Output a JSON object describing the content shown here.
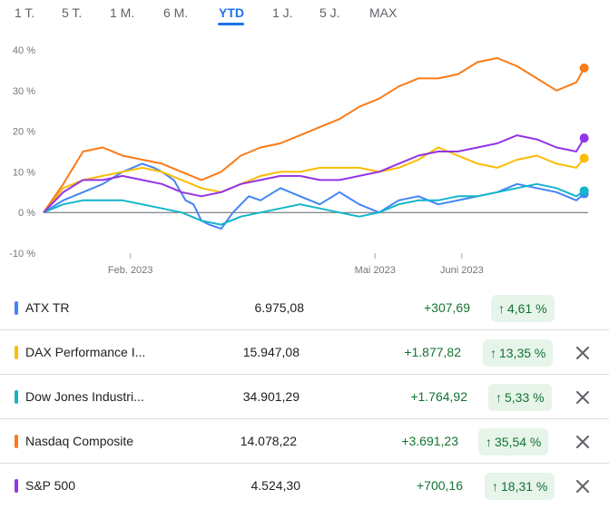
{
  "range_tabs": [
    {
      "label": "1 T.",
      "active": false
    },
    {
      "label": "5 T.",
      "active": false
    },
    {
      "label": "1 M.",
      "active": false
    },
    {
      "label": "6 M.",
      "active": false
    },
    {
      "label": "YTD",
      "active": true
    },
    {
      "label": "1 J.",
      "active": false
    },
    {
      "label": "5 J.",
      "active": false
    },
    {
      "label": "MAX",
      "active": false
    }
  ],
  "colors": {
    "accent": "#1a73e8",
    "positive": "#137333",
    "positive_bg": "#e6f4ea"
  },
  "chart_data": {
    "type": "line",
    "x_unit": "trading days since 2023-01-02",
    "x_ticks": [
      {
        "label": "Feb. 2023",
        "x": 22
      },
      {
        "label": "Mai 2023",
        "x": 84
      },
      {
        "label": "Juni 2023",
        "x": 106
      }
    ],
    "y_ticks": [
      "40 %",
      "30 %",
      "20 %",
      "10 %",
      "0 %",
      "-10 %"
    ],
    "ylim": [
      -10,
      40
    ],
    "xlim": [
      0,
      138
    ],
    "grid": false,
    "zero_line": true,
    "series": [
      {
        "name": "ATX TR",
        "color": "#4285f4",
        "x": [
          0,
          5,
          10,
          15,
          20,
          25,
          28,
          30,
          33,
          36,
          38,
          40,
          42,
          45,
          48,
          50,
          52,
          55,
          60,
          65,
          70,
          75,
          80,
          85,
          90,
          95,
          100,
          105,
          110,
          115,
          120,
          125,
          130,
          135,
          137
        ],
        "y": [
          0,
          3,
          5,
          7,
          10,
          12,
          11,
          10,
          8,
          3,
          2,
          -2,
          -3,
          -4,
          0,
          2,
          4,
          3,
          6,
          4,
          2,
          5,
          2,
          0,
          3,
          4,
          2,
          3,
          4,
          5,
          7,
          6,
          5,
          3,
          4.61
        ]
      },
      {
        "name": "DAX Performance I...",
        "color": "#fbbc04",
        "x": [
          0,
          5,
          10,
          15,
          20,
          25,
          30,
          35,
          40,
          45,
          50,
          55,
          60,
          65,
          70,
          75,
          80,
          85,
          90,
          95,
          100,
          105,
          110,
          115,
          120,
          125,
          130,
          135,
          137
        ],
        "y": [
          0,
          6,
          8,
          9,
          10,
          11,
          10,
          8,
          6,
          5,
          7,
          9,
          10,
          10,
          11,
          11,
          11,
          10,
          11,
          13,
          16,
          14,
          12,
          11,
          13,
          14,
          12,
          11,
          13.35
        ]
      },
      {
        "name": "Dow Jones Industri...",
        "color": "#12b5cb",
        "x": [
          0,
          5,
          10,
          15,
          20,
          25,
          30,
          35,
          40,
          45,
          50,
          55,
          60,
          65,
          70,
          75,
          80,
          85,
          90,
          95,
          100,
          105,
          110,
          115,
          120,
          125,
          130,
          135,
          137
        ],
        "y": [
          0,
          2,
          3,
          3,
          3,
          2,
          1,
          0,
          -2,
          -3,
          -1,
          0,
          1,
          2,
          1,
          0,
          -1,
          0,
          2,
          3,
          3,
          4,
          4,
          5,
          6,
          7,
          6,
          4,
          5.33
        ]
      },
      {
        "name": "Nasdaq Composite",
        "color": "#fa7b17",
        "x": [
          0,
          5,
          10,
          15,
          20,
          25,
          30,
          35,
          40,
          45,
          50,
          55,
          60,
          65,
          70,
          75,
          80,
          85,
          90,
          95,
          100,
          105,
          110,
          115,
          120,
          125,
          130,
          135,
          137
        ],
        "y": [
          0,
          7,
          15,
          16,
          14,
          13,
          12,
          10,
          8,
          10,
          14,
          16,
          17,
          19,
          21,
          23,
          26,
          28,
          31,
          33,
          33,
          34,
          37,
          38,
          36,
          33,
          30,
          32,
          35.54
        ]
      },
      {
        "name": "S&P 500",
        "color": "#9334e6",
        "x": [
          0,
          5,
          10,
          15,
          20,
          25,
          30,
          35,
          40,
          45,
          50,
          55,
          60,
          65,
          70,
          75,
          80,
          85,
          90,
          95,
          100,
          105,
          110,
          115,
          120,
          125,
          130,
          135,
          137
        ],
        "y": [
          0,
          5,
          8,
          8,
          9,
          8,
          7,
          5,
          4,
          5,
          7,
          8,
          9,
          9,
          8,
          8,
          9,
          10,
          12,
          14,
          15,
          15,
          16,
          17,
          19,
          18,
          16,
          15,
          18.31
        ]
      }
    ]
  },
  "rows": [
    {
      "name": "ATX TR",
      "color": "#4285f4",
      "value": "6.975,08",
      "change": "+307,69",
      "percent": "4,61 %",
      "removable": false
    },
    {
      "name": "DAX Performance I...",
      "color": "#fbbc04",
      "value": "15.947,08",
      "change": "+1.877,82",
      "percent": "13,35 %",
      "removable": true
    },
    {
      "name": "Dow Jones Industri...",
      "color": "#12b5cb",
      "value": "34.901,29",
      "change": "+1.764,92",
      "percent": "5,33 %",
      "removable": true
    },
    {
      "name": "Nasdaq Composite",
      "color": "#fa7b17",
      "value": "14.078,22",
      "change": "+3.691,23",
      "percent": "35,54 %",
      "removable": true
    },
    {
      "name": "S&P 500",
      "color": "#9334e6",
      "value": "4.524,30",
      "change": "+700,16",
      "percent": "18,31 %",
      "removable": true
    }
  ]
}
